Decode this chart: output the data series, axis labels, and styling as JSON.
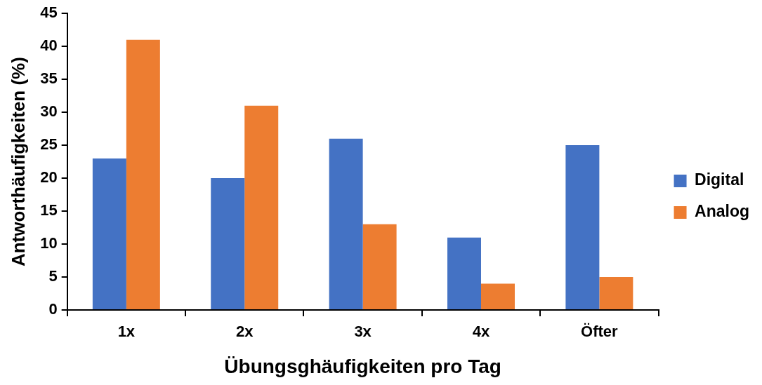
{
  "chart_data": {
    "type": "bar",
    "xlabel": "Übungsghäufigkeiten pro Tag",
    "ylabel": "Antworthäufigkeiten (%)",
    "categories": [
      "1x",
      "2x",
      "3x",
      "4x",
      "Öfter"
    ],
    "series": [
      {
        "name": "Digital",
        "color": "#4472c4",
        "values": [
          23,
          20,
          26,
          11,
          25
        ]
      },
      {
        "name": "Analog",
        "color": "#ed7d31",
        "values": [
          41,
          31,
          13,
          4,
          5
        ]
      }
    ],
    "ylim": [
      0,
      45
    ],
    "yticks": [
      0,
      5,
      10,
      15,
      20,
      25,
      30,
      35,
      40,
      45
    ],
    "grid": false,
    "legend": "right"
  }
}
